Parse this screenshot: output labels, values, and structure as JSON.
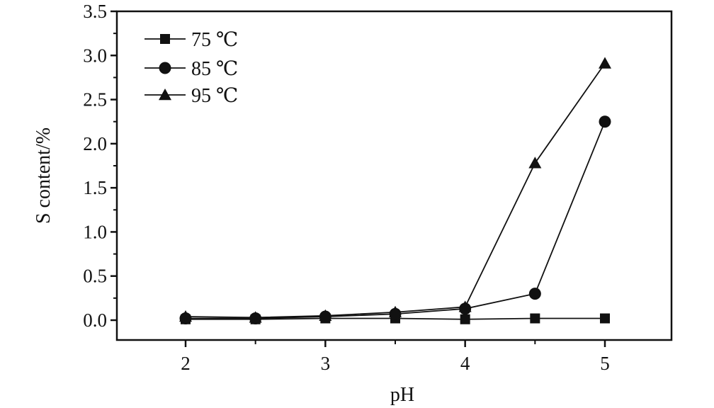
{
  "chart_data": {
    "type": "line",
    "title": "",
    "xlabel": "pH",
    "ylabel": "S content/%",
    "xlim": [
      1.5,
      5.5
    ],
    "ylim": [
      -0.2,
      3.5
    ],
    "xticks": [
      2,
      3,
      4,
      5
    ],
    "xtick_labels": [
      "2",
      "3",
      "4",
      "5"
    ],
    "yticks": [
      0.0,
      0.5,
      1.0,
      1.5,
      2.0,
      2.5,
      3.0,
      3.5
    ],
    "ytick_labels": [
      "0.0",
      "0.5",
      "1.0",
      "1.5",
      "2.0",
      "2.5",
      "3.0",
      "3.5"
    ],
    "grid": false,
    "legend": "top-left",
    "x": [
      2,
      2.5,
      3,
      3.5,
      4,
      4.5,
      5
    ],
    "series": [
      {
        "name": "75 ℃",
        "marker": "square",
        "color": "#111111",
        "values": [
          0.01,
          0.01,
          0.02,
          0.02,
          0.01,
          0.02,
          0.02
        ]
      },
      {
        "name": "85 ℃",
        "marker": "circle",
        "color": "#111111",
        "values": [
          0.02,
          0.02,
          0.04,
          0.07,
          0.13,
          0.3,
          2.25
        ]
      },
      {
        "name": "95 ℃",
        "marker": "triangle",
        "color": "#111111",
        "values": [
          0.04,
          0.03,
          0.05,
          0.09,
          0.15,
          1.78,
          2.91
        ]
      }
    ]
  }
}
